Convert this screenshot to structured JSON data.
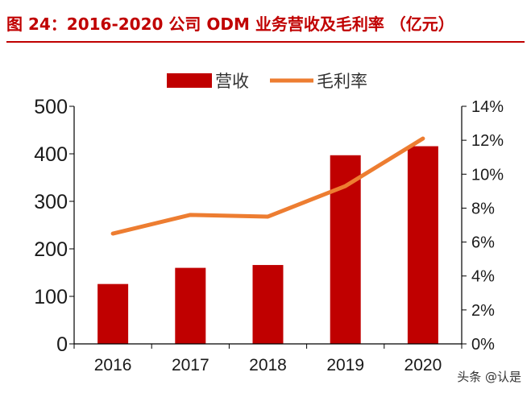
{
  "colors": {
    "bar": "#c00000",
    "line": "#ed7d31",
    "axis": "#000000",
    "title": "#c00000"
  },
  "watermark": "头条 @认是",
  "chart_data": {
    "type": "bar+line",
    "title": "图 24：2016-2020 公司 ODM 业务营收及毛利率 （亿元）",
    "categories": [
      "2016",
      "2017",
      "2018",
      "2019",
      "2020"
    ],
    "series": [
      {
        "name": "营收",
        "type": "bar",
        "axis": "left",
        "values": [
          126,
          160,
          166,
          397,
          416
        ]
      },
      {
        "name": "毛利率",
        "type": "line",
        "axis": "right",
        "values": [
          6.5,
          7.6,
          7.5,
          9.3,
          12.1
        ]
      }
    ],
    "y_left": {
      "min": 0,
      "max": 500,
      "step": 100,
      "tick_labels": [
        "0",
        "100",
        "200",
        "300",
        "400",
        "500"
      ]
    },
    "y_right": {
      "min": 0,
      "max": 14,
      "step": 2,
      "tick_labels": [
        "0%",
        "2%",
        "4%",
        "6%",
        "8%",
        "10%",
        "12%",
        "14%"
      ]
    },
    "legend_position": "top-center",
    "grid": false
  }
}
